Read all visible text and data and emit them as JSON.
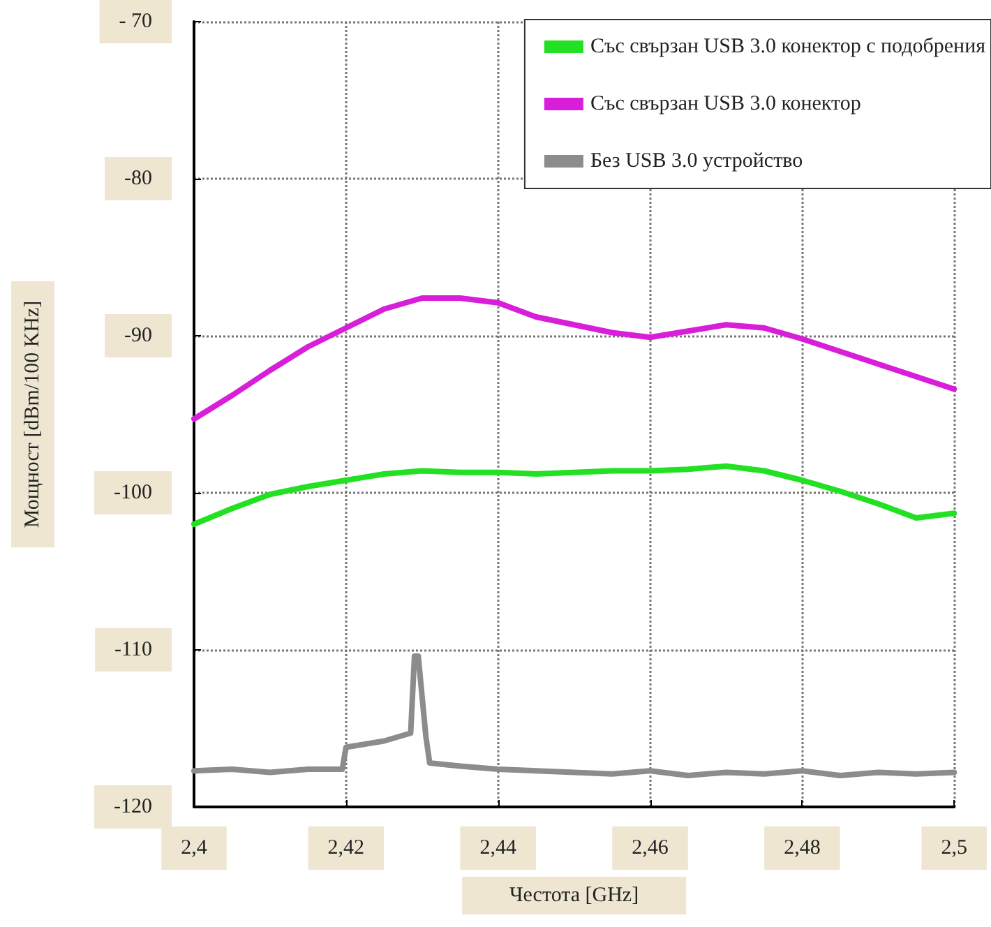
{
  "chart_data": {
    "type": "line",
    "xlabel": "Честота [GHz]",
    "ylabel": "Мощност [dBm/100 KHz]",
    "xlim": [
      2.4,
      2.5
    ],
    "xticks": [
      {
        "value": 2.4,
        "label": "2,4"
      },
      {
        "value": 2.42,
        "label": "2,42"
      },
      {
        "value": 2.44,
        "label": "2,44"
      },
      {
        "value": 2.46,
        "label": "2,46"
      },
      {
        "value": 2.48,
        "label": "2,48"
      },
      {
        "value": 2.5,
        "label": "2,5"
      }
    ],
    "ylim": [
      -120,
      -70
    ],
    "yticks": [
      {
        "value": -70,
        "label": "- 70"
      },
      -80,
      -90,
      -100,
      -110,
      -120
    ],
    "grid": true,
    "legend": "top right",
    "marker": "none",
    "line_style": "solid",
    "series": [
      {
        "name": "Със свързан USB 3.0 конектор с подобрения",
        "color": "#22e022",
        "x": [
          2.4,
          2.405,
          2.41,
          2.415,
          2.42,
          2.425,
          2.43,
          2.435,
          2.44,
          2.445,
          2.45,
          2.455,
          2.46,
          2.465,
          2.47,
          2.475,
          2.48,
          2.485,
          2.49,
          2.495,
          2.5
        ],
        "values": [
          -102,
          -101,
          -100.1,
          -99.6,
          -99.2,
          -98.8,
          -98.6,
          -98.7,
          -98.7,
          -98.8,
          -98.7,
          -98.6,
          -98.6,
          -98.5,
          -98.3,
          -98.6,
          -99.2,
          -99.9,
          -100.7,
          -101.6,
          -101.3
        ]
      },
      {
        "name": "Със свързан USB 3.0 конектор",
        "color": "#d81ed8",
        "x": [
          2.4,
          2.405,
          2.41,
          2.415,
          2.42,
          2.425,
          2.43,
          2.435,
          2.44,
          2.445,
          2.45,
          2.455,
          2.46,
          2.465,
          2.47,
          2.475,
          2.48,
          2.485,
          2.49,
          2.495,
          2.5
        ],
        "values": [
          -95.3,
          -93.8,
          -92.2,
          -90.7,
          -89.5,
          -88.3,
          -87.6,
          -87.6,
          -87.9,
          -88.8,
          -89.3,
          -89.8,
          -90.1,
          -89.7,
          -89.3,
          -89.5,
          -90.2,
          -91,
          -91.8,
          -92.6,
          -93.4
        ]
      },
      {
        "name": "Без USB 3.0 устройство",
        "color": "#8c8c8c",
        "x": [
          2.4,
          2.405,
          2.41,
          2.415,
          2.4195,
          2.42,
          2.425,
          2.4285,
          2.429,
          2.4295,
          2.4305,
          2.431,
          2.435,
          2.44,
          2.445,
          2.45,
          2.455,
          2.46,
          2.465,
          2.47,
          2.475,
          2.48,
          2.485,
          2.49,
          2.495,
          2.5
        ],
        "values": [
          -117.7,
          -117.6,
          -117.8,
          -117.6,
          -117.6,
          -116.2,
          -115.8,
          -115.3,
          -110.4,
          -110.4,
          -115.5,
          -117.2,
          -117.4,
          -117.6,
          -117.7,
          -117.8,
          -117.9,
          -117.7,
          -118,
          -117.8,
          -117.9,
          -117.7,
          -118,
          -117.8,
          -117.9,
          -117.8
        ]
      }
    ]
  }
}
